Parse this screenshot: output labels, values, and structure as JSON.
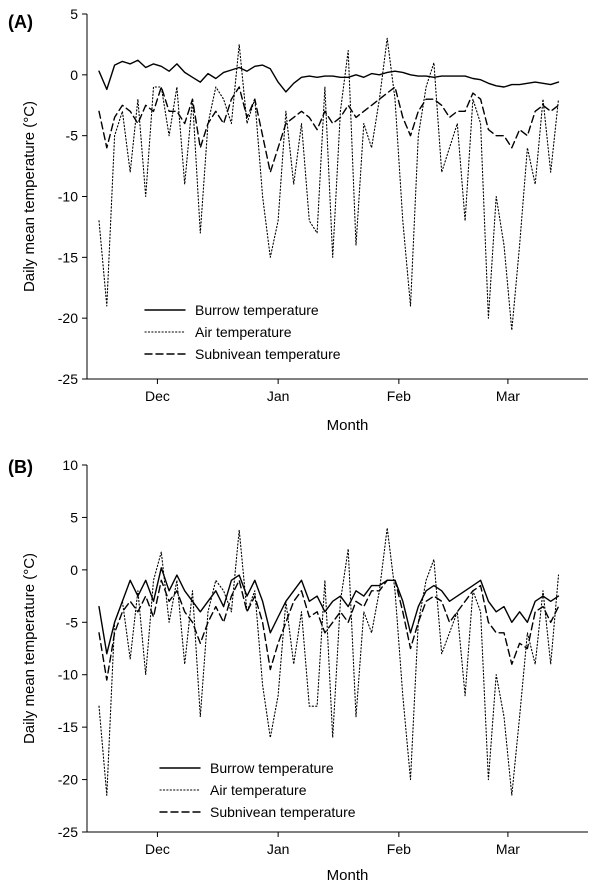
{
  "figure": {
    "panels": [
      {
        "tag": "(A)"
      },
      {
        "tag": "(B)"
      }
    ]
  },
  "chart_data": [
    {
      "type": "line",
      "panel": "(A)",
      "xlabel": "Month",
      "ylabel": "Daily mean temperature (°C)",
      "ylim": [
        -25,
        5
      ],
      "yticks": [
        5,
        0,
        -5,
        -10,
        -15,
        -20,
        -25
      ],
      "xlim": [
        0,
        123
      ],
      "xticks": [
        {
          "label": "Dec",
          "x": 15
        },
        {
          "label": "Jan",
          "x": 46
        },
        {
          "label": "Feb",
          "x": 77
        },
        {
          "label": "Mar",
          "x": 105
        }
      ],
      "legend_position": "bottom-left",
      "series": [
        {
          "name": "Burrow temperature",
          "style": "solid",
          "x": [
            0,
            2,
            4,
            6,
            8,
            10,
            12,
            14,
            16,
            18,
            20,
            22,
            24,
            26,
            28,
            30,
            32,
            34,
            36,
            38,
            40,
            42,
            44,
            46,
            48,
            50,
            52,
            54,
            56,
            58,
            60,
            62,
            64,
            66,
            68,
            70,
            72,
            74,
            76,
            78,
            80,
            82,
            84,
            86,
            88,
            90,
            92,
            94,
            96,
            98,
            100,
            102,
            104,
            106,
            108,
            110,
            112,
            114,
            116,
            118
          ],
          "values": [
            0.3,
            -1.2,
            0.8,
            1.1,
            0.9,
            1.2,
            0.6,
            0.9,
            0.7,
            0.3,
            0.9,
            0.2,
            -0.2,
            -0.6,
            0.1,
            -0.3,
            0.2,
            0.4,
            0.6,
            0.3,
            0.7,
            0.8,
            0.5,
            -0.6,
            -1.4,
            -0.7,
            -0.2,
            -0.1,
            -0.2,
            -0.1,
            -0.1,
            -0.2,
            -0.2,
            0.0,
            -0.2,
            0.1,
            0.0,
            0.2,
            0.3,
            0.2,
            0.0,
            -0.1,
            -0.1,
            -0.2,
            -0.1,
            -0.1,
            -0.1,
            -0.1,
            -0.3,
            -0.4,
            -0.7,
            -0.9,
            -1.0,
            -0.8,
            -0.8,
            -0.7,
            -0.6,
            -0.7,
            -0.8,
            -0.6
          ]
        },
        {
          "name": "Air temperature",
          "style": "dotted",
          "x": [
            0,
            2,
            4,
            6,
            8,
            10,
            12,
            14,
            16,
            18,
            20,
            22,
            24,
            26,
            28,
            30,
            32,
            34,
            36,
            38,
            40,
            42,
            44,
            46,
            48,
            50,
            52,
            54,
            56,
            58,
            60,
            62,
            64,
            66,
            68,
            70,
            72,
            74,
            76,
            78,
            80,
            82,
            84,
            86,
            88,
            90,
            92,
            94,
            96,
            98,
            100,
            102,
            104,
            106,
            108,
            110,
            112,
            114,
            116,
            118
          ],
          "values": [
            -12,
            -19,
            -5,
            -3,
            -8,
            -2,
            -10,
            -1,
            -1,
            -5,
            -1,
            -9,
            -2,
            -13,
            -4,
            -1,
            -2,
            -4,
            2.5,
            -4,
            -2,
            -10,
            -15,
            -12,
            -3,
            -9,
            -4,
            -12,
            -13,
            -1,
            -15,
            -3,
            2,
            -14,
            -4,
            -6,
            -2,
            3,
            -2,
            -12,
            -19,
            -5,
            -1,
            1,
            -8,
            -6,
            -4,
            -12,
            -2,
            -4,
            -20,
            -10,
            -14,
            -21,
            -14,
            -6,
            -9,
            -2,
            -8,
            -2
          ]
        },
        {
          "name": "Subnivean temperature",
          "style": "dashed",
          "x": [
            0,
            2,
            4,
            6,
            8,
            10,
            12,
            14,
            16,
            18,
            20,
            22,
            24,
            26,
            28,
            30,
            32,
            34,
            36,
            38,
            40,
            42,
            44,
            46,
            48,
            50,
            52,
            54,
            56,
            58,
            60,
            62,
            64,
            66,
            68,
            70,
            72,
            74,
            76,
            78,
            80,
            82,
            84,
            86,
            88,
            90,
            92,
            94,
            96,
            98,
            100,
            102,
            104,
            106,
            108,
            110,
            112,
            114,
            116,
            118
          ],
          "values": [
            -3,
            -6,
            -3.5,
            -2.5,
            -3,
            -4,
            -2.5,
            -3,
            -1,
            -3,
            -3,
            -4,
            -2,
            -6,
            -4,
            -3,
            -4,
            -2,
            -1,
            -3.5,
            -2,
            -5,
            -8,
            -6,
            -4,
            -3.5,
            -3,
            -3.5,
            -4.5,
            -3,
            -4,
            -3.5,
            -2.5,
            -3.5,
            -3,
            -2.5,
            -2,
            -1.5,
            -1,
            -3.5,
            -5,
            -3,
            -2,
            -2,
            -2.5,
            -3.5,
            -3,
            -3,
            -1.5,
            -2,
            -4.5,
            -5,
            -5,
            -6,
            -4.5,
            -5,
            -3,
            -2.5,
            -3,
            -2.5
          ]
        }
      ]
    },
    {
      "type": "line",
      "panel": "(B)",
      "xlabel": "Month",
      "ylabel": "Daily mean temperature (°C)",
      "ylim": [
        -25,
        10
      ],
      "yticks": [
        10,
        5,
        0,
        -5,
        -10,
        -15,
        -20,
        -25
      ],
      "xlim": [
        0,
        123
      ],
      "xticks": [
        {
          "label": "Dec",
          "x": 15
        },
        {
          "label": "Jan",
          "x": 46
        },
        {
          "label": "Feb",
          "x": 77
        },
        {
          "label": "Mar",
          "x": 105
        }
      ],
      "legend_position": "bottom-left",
      "series": [
        {
          "name": "Burrow temperature",
          "style": "solid",
          "x": [
            0,
            2,
            4,
            6,
            8,
            10,
            12,
            14,
            16,
            18,
            20,
            22,
            24,
            26,
            28,
            30,
            32,
            34,
            36,
            38,
            40,
            42,
            44,
            46,
            48,
            50,
            52,
            54,
            56,
            58,
            60,
            62,
            64,
            66,
            68,
            70,
            72,
            74,
            76,
            78,
            80,
            82,
            84,
            86,
            88,
            90,
            92,
            94,
            96,
            98,
            100,
            102,
            104,
            106,
            108,
            110,
            112,
            114,
            116,
            118
          ],
          "values": [
            -3.5,
            -8,
            -5,
            -3,
            -1,
            -2.5,
            -1,
            -3,
            0.2,
            -2,
            -0.5,
            -2,
            -3,
            -4,
            -3,
            -2,
            -3.5,
            -1,
            -0.5,
            -2.5,
            -1,
            -3,
            -6,
            -4.5,
            -3,
            -2,
            -1,
            -3,
            -2.5,
            -4,
            -3,
            -2.5,
            -3.5,
            -2,
            -2.5,
            -1.5,
            -1.5,
            -1,
            -1,
            -3,
            -6,
            -3.5,
            -2,
            -1.5,
            -2,
            -3,
            -2.5,
            -2,
            -1.5,
            -1,
            -3,
            -4,
            -3.5,
            -5,
            -4,
            -5,
            -3,
            -2.5,
            -3,
            -2.5
          ]
        },
        {
          "name": "Air temperature",
          "style": "dotted",
          "x": [
            0,
            2,
            4,
            6,
            8,
            10,
            12,
            14,
            16,
            18,
            20,
            22,
            24,
            26,
            28,
            30,
            32,
            34,
            36,
            38,
            40,
            42,
            44,
            46,
            48,
            50,
            52,
            54,
            56,
            58,
            60,
            62,
            64,
            66,
            68,
            70,
            72,
            74,
            76,
            78,
            80,
            82,
            84,
            86,
            88,
            90,
            92,
            94,
            96,
            98,
            100,
            102,
            104,
            106,
            108,
            110,
            112,
            114,
            116,
            118
          ],
          "values": [
            -13,
            -21.5,
            -5,
            -3,
            -8.5,
            -2,
            -10,
            -1,
            1.7,
            -5,
            -1,
            -9,
            -2,
            -14,
            -4,
            -1,
            -2,
            -4,
            3.8,
            -4,
            -2,
            -11,
            -16,
            -12,
            -3,
            -9,
            -4,
            -13,
            -13,
            -1,
            -16,
            -3,
            2,
            -14,
            -4,
            -6,
            -2,
            4,
            -2,
            -12,
            -20,
            -5,
            -1,
            1,
            -8,
            -6,
            -4,
            -12,
            -2,
            -4,
            -20,
            -10,
            -14,
            -21.5,
            -14,
            -6,
            -9,
            -2,
            -9,
            -0.5
          ]
        },
        {
          "name": "Subnivean temperature",
          "style": "dashed",
          "x": [
            0,
            2,
            4,
            6,
            8,
            10,
            12,
            14,
            16,
            18,
            20,
            22,
            24,
            26,
            28,
            30,
            32,
            34,
            36,
            38,
            40,
            42,
            44,
            46,
            48,
            50,
            52,
            54,
            56,
            58,
            60,
            62,
            64,
            66,
            68,
            70,
            72,
            74,
            76,
            78,
            80,
            82,
            84,
            86,
            88,
            90,
            92,
            94,
            96,
            98,
            100,
            102,
            104,
            106,
            108,
            110,
            112,
            114,
            116,
            118
          ],
          "values": [
            -6,
            -10.5,
            -6,
            -4,
            -3,
            -4,
            -2.5,
            -4.5,
            -1,
            -3,
            -2,
            -4,
            -5,
            -7,
            -5,
            -3.5,
            -5,
            -2.5,
            -1,
            -4,
            -2.5,
            -5,
            -9.5,
            -7,
            -5,
            -3,
            -2,
            -4.5,
            -4,
            -6,
            -5,
            -4,
            -5,
            -3,
            -3.5,
            -2,
            -2,
            -1,
            -1,
            -4,
            -7.5,
            -5,
            -3,
            -2.5,
            -3,
            -5,
            -4,
            -3,
            -2,
            -1.5,
            -5,
            -6,
            -6,
            -9,
            -7,
            -7.5,
            -4,
            -3.5,
            -5,
            -3.5
          ]
        }
      ]
    }
  ]
}
